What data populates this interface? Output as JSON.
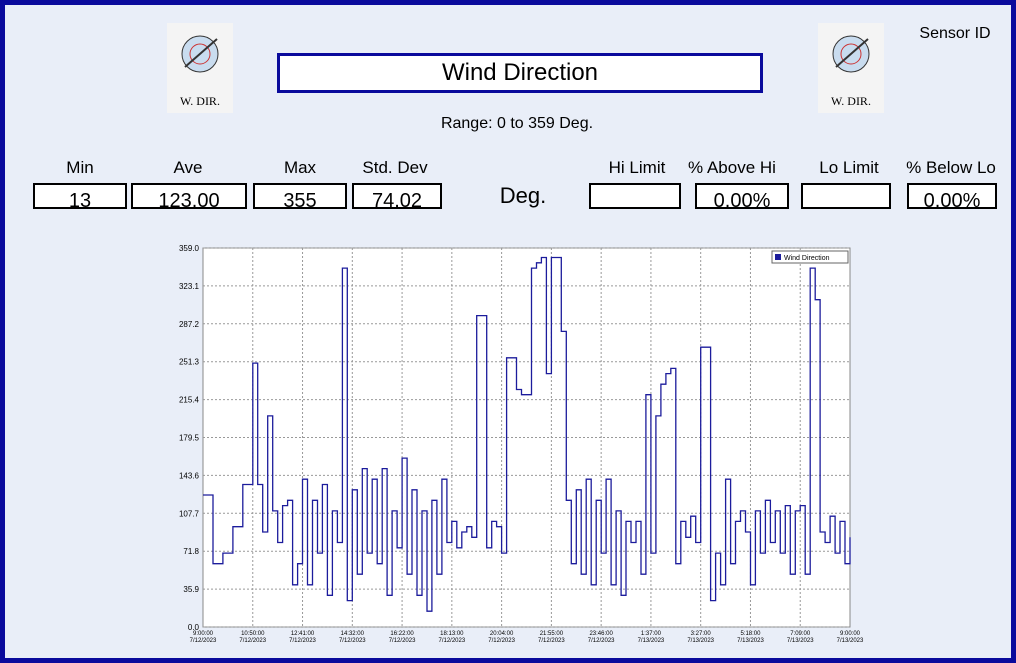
{
  "header": {
    "title": "Wind Direction",
    "range": "Range: 0 to 359 Deg.",
    "sensor_id": "Sensor ID",
    "icon_label": "W. DIR."
  },
  "stats": [
    {
      "label": "Min",
      "value": "13"
    },
    {
      "label": "Ave",
      "value": "123.00"
    },
    {
      "label": "Max",
      "value": "355"
    },
    {
      "label": "Std. Dev",
      "value": "74.02"
    }
  ],
  "unit": "Deg.",
  "limits": [
    {
      "label": "Hi Limit"
    },
    {
      "label": "% Above Hi",
      "value": "0.00%"
    },
    {
      "label": "Lo Limit"
    },
    {
      "label": "% Below Lo",
      "value": "0.00%"
    }
  ],
  "chart_data": {
    "type": "line",
    "legend": "top-right",
    "grid": true,
    "x_labels": [
      {
        "time": "9:00:00",
        "date": "7/12/2023"
      },
      {
        "time": "10:50:00",
        "date": "7/12/2023"
      },
      {
        "time": "12:41:00",
        "date": "7/12/2023"
      },
      {
        "time": "14:32:00",
        "date": "7/12/2023"
      },
      {
        "time": "16:22:00",
        "date": "7/12/2023"
      },
      {
        "time": "18:13:00",
        "date": "7/12/2023"
      },
      {
        "time": "20:04:00",
        "date": "7/12/2023"
      },
      {
        "time": "21:55:00",
        "date": "7/12/2023"
      },
      {
        "time": "23:46:00",
        "date": "7/12/2023"
      },
      {
        "time": "1:37:00",
        "date": "7/13/2023"
      },
      {
        "time": "3:27:00",
        "date": "7/13/2023"
      },
      {
        "time": "5:18:00",
        "date": "7/13/2023"
      },
      {
        "time": "7:09:00",
        "date": "7/13/2023"
      },
      {
        "time": "9:00:00",
        "date": "7/13/2023"
      }
    ],
    "ylim": [
      0,
      359
    ],
    "yticks": [
      {
        "value": 0,
        "label": "0.0"
      },
      35.9,
      71.8,
      107.7,
      143.6,
      179.5,
      215.4,
      251.3,
      287.2,
      323.1,
      {
        "value": 359,
        "label": "359.0"
      }
    ],
    "series": [
      {
        "name": "Wind Direction",
        "color": "#1c1c9c",
        "values": [
          125,
          125,
          60,
          60,
          70,
          70,
          95,
          95,
          135,
          135,
          250,
          135,
          90,
          200,
          110,
          80,
          115,
          120,
          40,
          60,
          140,
          40,
          120,
          70,
          135,
          30,
          110,
          80,
          340,
          25,
          130,
          50,
          150,
          70,
          140,
          60,
          150,
          30,
          110,
          75,
          160,
          50,
          130,
          30,
          110,
          15,
          120,
          50,
          140,
          80,
          100,
          75,
          90,
          95,
          85,
          295,
          295,
          75,
          100,
          95,
          70,
          255,
          255,
          225,
          220,
          220,
          340,
          345,
          350,
          240,
          350,
          350,
          280,
          120,
          60,
          130,
          50,
          140,
          40,
          120,
          70,
          140,
          40,
          110,
          30,
          100,
          80,
          100,
          50,
          220,
          70,
          200,
          230,
          240,
          245,
          60,
          100,
          85,
          105,
          80,
          265,
          265,
          25,
          70,
          40,
          140,
          60,
          100,
          110,
          90,
          40,
          110,
          70,
          120,
          80,
          110,
          70,
          115,
          50,
          110,
          115,
          50,
          340,
          310,
          90,
          80,
          105,
          70,
          100,
          60,
          85
        ]
      }
    ]
  }
}
